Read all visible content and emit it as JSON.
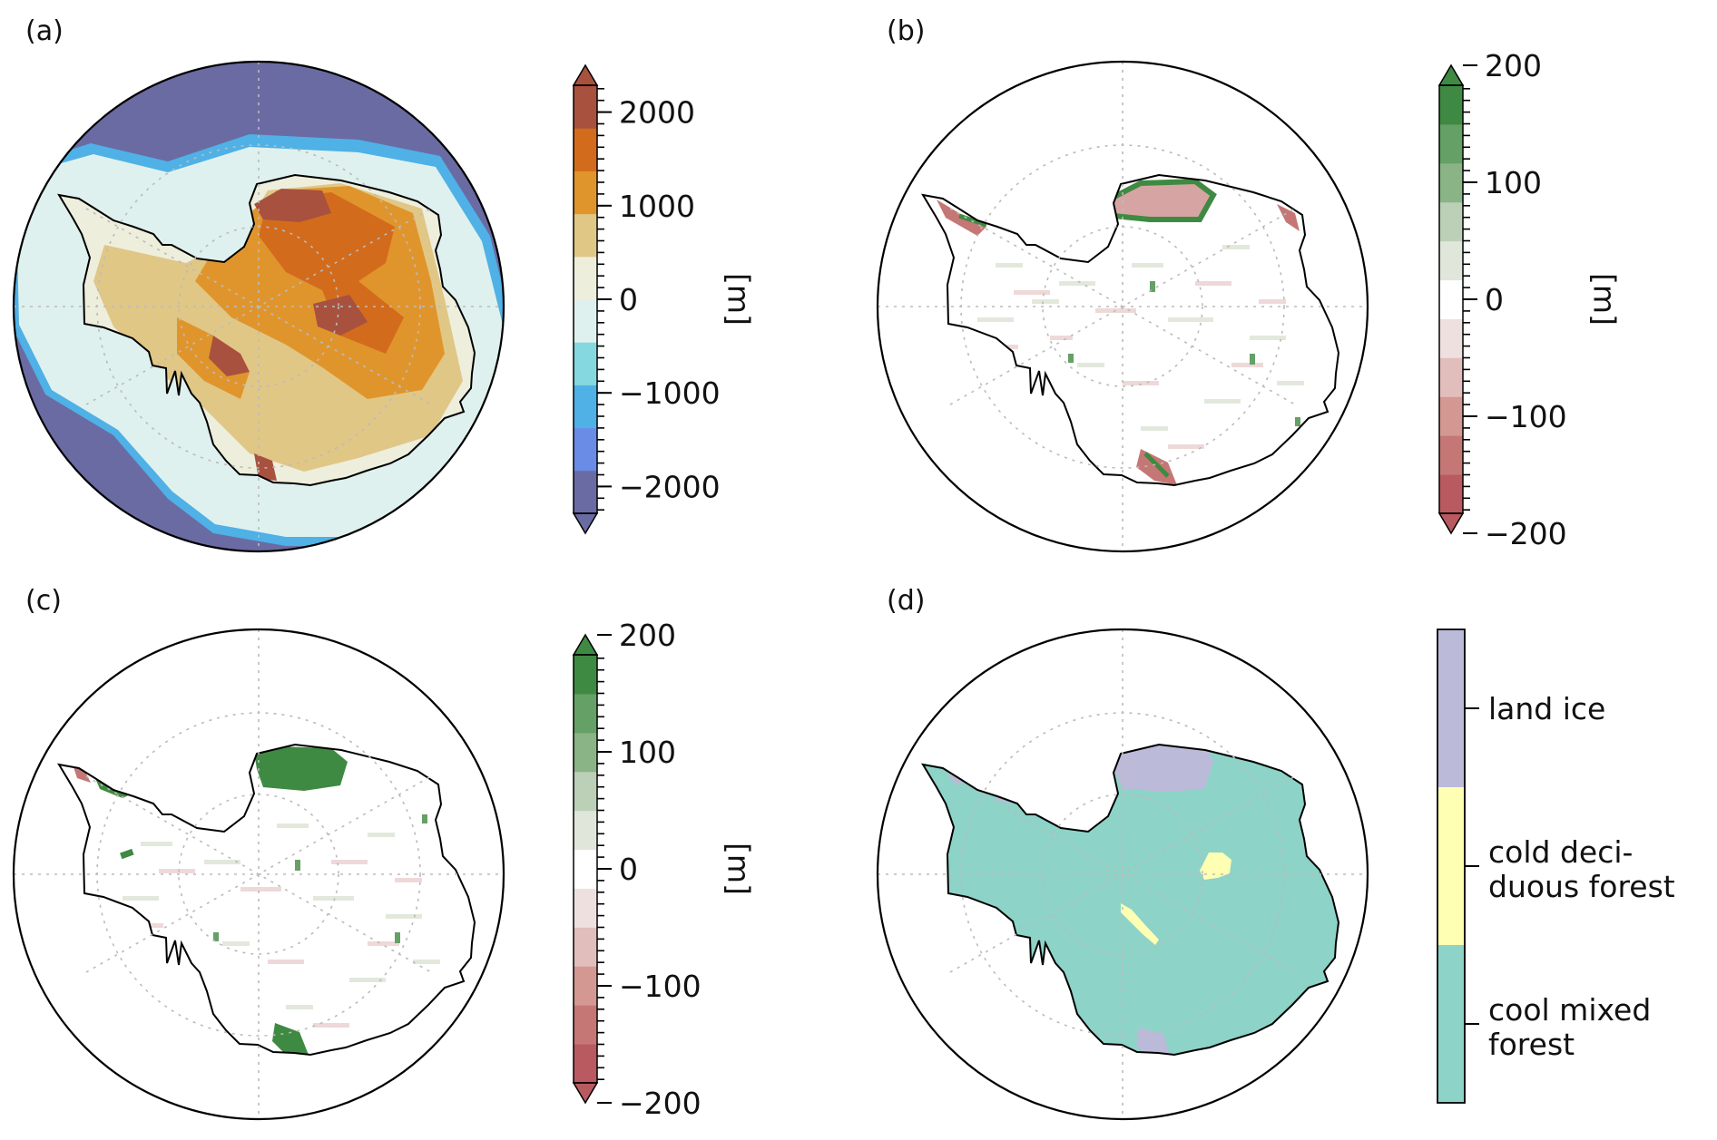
{
  "panels": [
    {
      "label": "(a)",
      "colorbar": {
        "unit": "[m]",
        "ticks": [
          "2000",
          "1000",
          "0",
          "−1000",
          "−2000"
        ],
        "tick_values": [
          2000,
          1000,
          0,
          -1000,
          -2000
        ],
        "range": [
          -2500,
          2500
        ],
        "colors": [
          "#6b6ba3",
          "#6a8ce6",
          "#4fb1e6",
          "#86d8e0",
          "#dff1ee",
          "#eeeedd",
          "#e0c786",
          "#e0952c",
          "#d36b1c",
          "#a8513f"
        ]
      }
    },
    {
      "label": "(b)",
      "colorbar": {
        "unit": "[m]",
        "ticks": [
          "200",
          "100",
          "0",
          "−100",
          "−200"
        ],
        "tick_values": [
          200,
          100,
          0,
          -100,
          -200
        ],
        "range": [
          -200,
          200
        ],
        "colors": [
          "#b85a60",
          "#c57775",
          "#d39892",
          "#e1bebb",
          "#eee0de",
          "#ffffff",
          "#e0e6da",
          "#bccfb7",
          "#8ab485",
          "#65a066",
          "#3f8a42"
        ]
      }
    },
    {
      "label": "(c)",
      "colorbar": {
        "unit": "[m]",
        "ticks": [
          "200",
          "100",
          "0",
          "−100",
          "−200"
        ],
        "tick_values": [
          200,
          100,
          0,
          -100,
          -200
        ],
        "range": [
          -200,
          200
        ],
        "colors": [
          "#b85a60",
          "#c57775",
          "#d39892",
          "#e1bebb",
          "#eee0de",
          "#ffffff",
          "#e0e6da",
          "#bccfb7",
          "#8ab485",
          "#65a066",
          "#3f8a42"
        ]
      }
    },
    {
      "label": "(d)",
      "legend": [
        {
          "line1": "land ice",
          "line2": "",
          "color": "#bcbad9"
        },
        {
          "line1": "cold deci-",
          "line2": "duous forest",
          "color": "#ffffb3"
        },
        {
          "line1": "cool mixed",
          "line2": "forest",
          "color": "#8dd3c7"
        }
      ]
    }
  ],
  "colors": {
    "ocean_a": "#6b6ba3",
    "shelf_a": "#dff1ee",
    "coast_a": "#4fb1e6",
    "diff_green": "#3f8a42",
    "diff_red": "#c57775",
    "forest": "#8dd3c7",
    "deciduous": "#ffffb3",
    "land_ice": "#bcbad9"
  }
}
